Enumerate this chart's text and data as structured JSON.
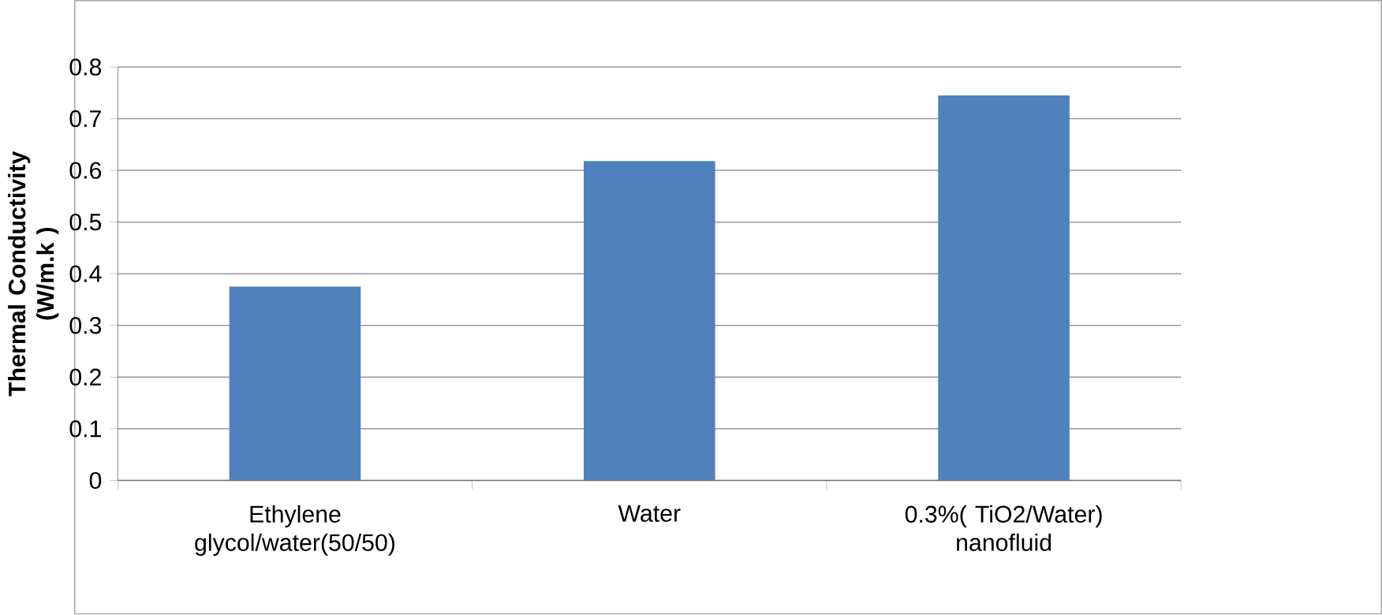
{
  "chart_data": {
    "type": "bar",
    "ylabel": "Thermal Conductivity (W/m.k )",
    "categories": [
      "Ethylene glycol/water(50/50)",
      "Water",
      "0.3%( TiO2/Water) nanofluid"
    ],
    "values": [
      0.375,
      0.618,
      0.745
    ],
    "color": "#4f81bd",
    "ylim": [
      0,
      0.8
    ],
    "yticks": [
      0,
      0.1,
      0.2,
      0.3,
      0.4,
      0.5,
      0.6,
      0.7,
      0.8
    ],
    "grid": "y"
  }
}
